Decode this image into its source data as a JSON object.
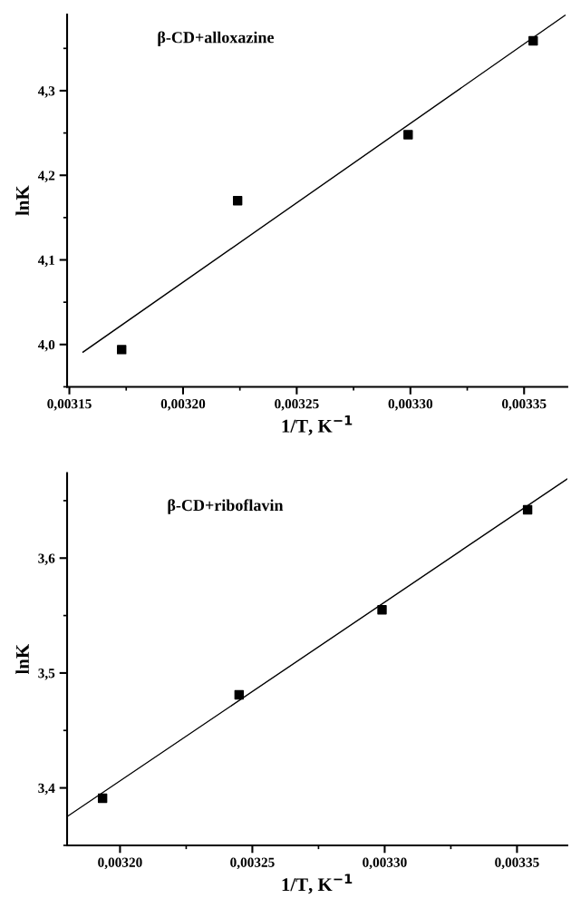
{
  "chart_data": [
    {
      "type": "scatter",
      "title": "β-CD+alloxazine",
      "xlabel": "1/T, K$^{−1}$",
      "ylabel": "lnK",
      "grid": false,
      "legend": false,
      "xlim": [
        0.003149,
        0.003369
      ],
      "ylim": [
        3.95,
        4.39
      ],
      "xticks": [
        {
          "value": 0.00315,
          "label": "0,00315"
        },
        {
          "value": 0.0032,
          "label": "0,00320"
        },
        {
          "value": 0.00325,
          "label": "0,00325"
        },
        {
          "value": 0.0033,
          "label": "0,00330"
        },
        {
          "value": 0.00335,
          "label": "0,00335"
        }
      ],
      "yticks": [
        {
          "value": 4.0,
          "label": "4,0"
        },
        {
          "value": 4.1,
          "label": "4,1"
        },
        {
          "value": 4.2,
          "label": "4,2"
        },
        {
          "value": 4.3,
          "label": "4,3"
        }
      ],
      "series": [
        {
          "marker": "square",
          "color": "#000000",
          "x": [
            0.003173,
            0.003224,
            0.003299,
            0.003354
          ],
          "values": [
            3.994,
            4.17,
            4.248,
            4.359
          ]
        },
        {
          "type": "line",
          "marker": "none",
          "color": "#000000",
          "line_style": "solid",
          "x": [
            0.003156,
            0.003368
          ],
          "values": [
            3.991,
            4.389
          ]
        }
      ]
    },
    {
      "type": "scatter",
      "title": "β-CD+riboflavin",
      "xlabel": "1/T, K$^{−1}$",
      "ylabel": "lnK",
      "grid": false,
      "legend": false,
      "xlim": [
        0.00318,
        0.003369
      ],
      "ylim": [
        3.35,
        3.674
      ],
      "xticks": [
        {
          "value": 0.0032,
          "label": "0,00320"
        },
        {
          "value": 0.00325,
          "label": "0,00325"
        },
        {
          "value": 0.0033,
          "label": "0,00330"
        },
        {
          "value": 0.00335,
          "label": "0,00335"
        }
      ],
      "yticks": [
        {
          "value": 3.4,
          "label": "3,4"
        },
        {
          "value": 3.5,
          "label": "3,5"
        },
        {
          "value": 3.6,
          "label": "3,6"
        }
      ],
      "series": [
        {
          "marker": "square",
          "color": "#000000",
          "x": [
            0.0031934,
            0.003245,
            0.003299,
            0.003354
          ],
          "values": [
            3.391,
            3.481,
            3.555,
            3.642
          ]
        },
        {
          "type": "line",
          "marker": "none",
          "color": "#000000",
          "line_style": "solid",
          "x": [
            0.00318,
            0.003369
          ],
          "values": [
            3.375,
            3.669
          ]
        }
      ]
    }
  ]
}
